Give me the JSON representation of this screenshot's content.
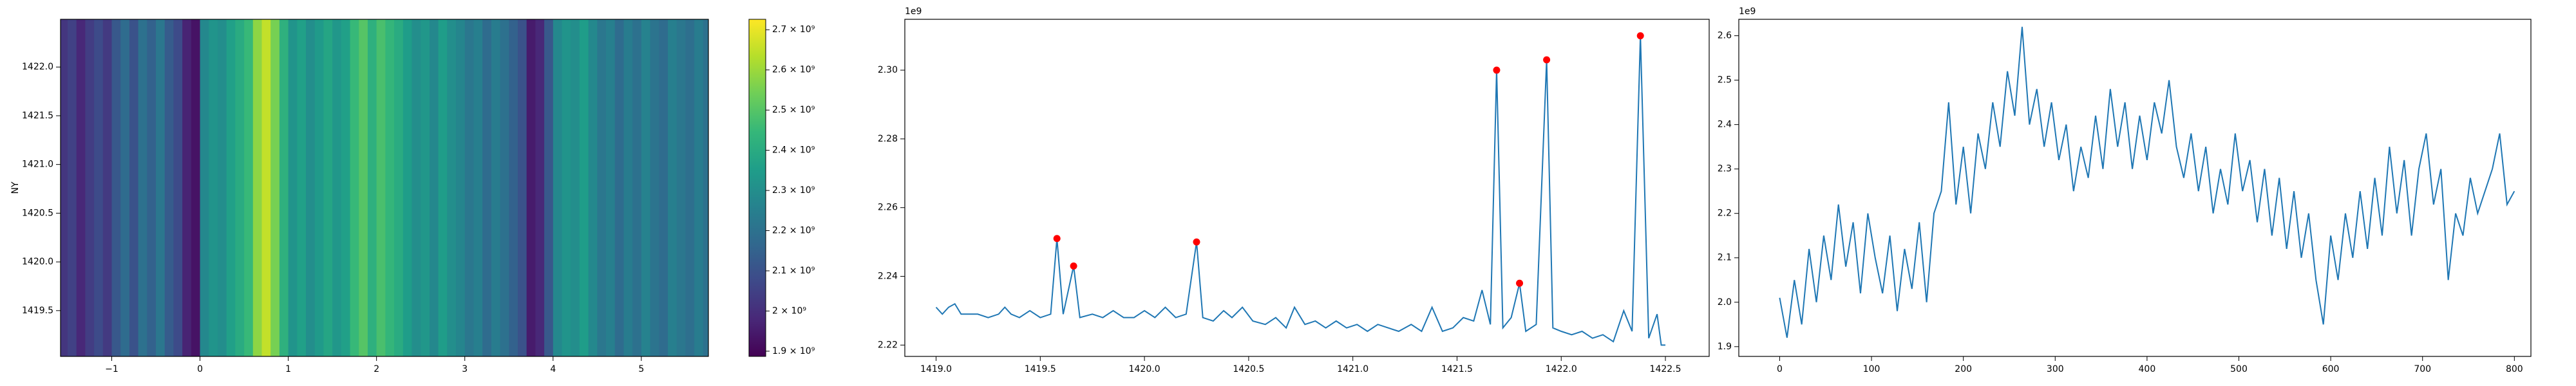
{
  "chart_data": [
    {
      "type": "heatmap",
      "y_label": "NY",
      "x_edges": [
        -1.6,
        -1.5,
        -1.4,
        -1.3,
        -1.2,
        -1.1,
        -1.0,
        -0.9,
        -0.8,
        -0.7,
        -0.6,
        -0.5,
        -0.4,
        -0.3,
        -0.2,
        -0.1,
        0.0,
        0.1,
        0.2,
        0.3,
        0.4,
        0.5,
        0.6,
        0.7,
        0.8,
        0.9,
        1.0,
        1.1,
        1.2,
        1.3,
        1.4,
        1.5,
        1.6,
        1.7,
        1.8,
        1.9,
        2.0,
        2.1,
        2.2,
        2.3,
        2.4,
        2.5,
        2.6,
        2.7,
        2.8,
        2.9,
        3.0,
        3.1,
        3.2,
        3.3,
        3.4,
        3.5,
        3.6,
        3.7,
        3.8,
        3.9,
        4.0,
        4.1,
        4.2,
        4.3,
        4.4,
        4.5,
        4.6,
        4.7,
        4.8,
        4.9,
        5.0,
        5.1,
        5.2,
        5.3,
        5.4,
        5.5,
        5.6,
        5.7,
        5.8
      ],
      "values": [
        2020000000.0,
        2050000000.0,
        1980000000.0,
        2040000000.0,
        2080000000.0,
        2030000000.0,
        2120000000.0,
        2180000000.0,
        2100000000.0,
        2200000000.0,
        2150000000.0,
        2220000000.0,
        2130000000.0,
        2080000000.0,
        1970000000.0,
        1930000000.0,
        2280000000.0,
        2320000000.0,
        2300000000.0,
        2360000000.0,
        2400000000.0,
        2450000000.0,
        2580000000.0,
        2650000000.0,
        2550000000.0,
        2420000000.0,
        2320000000.0,
        2360000000.0,
        2300000000.0,
        2340000000.0,
        2380000000.0,
        2330000000.0,
        2360000000.0,
        2450000000.0,
        2500000000.0,
        2420000000.0,
        2480000000.0,
        2440000000.0,
        2400000000.0,
        2350000000.0,
        2300000000.0,
        2330000000.0,
        2280000000.0,
        2350000000.0,
        2300000000.0,
        2270000000.0,
        2220000000.0,
        2250000000.0,
        2180000000.0,
        2240000000.0,
        2200000000.0,
        2150000000.0,
        2100000000.0,
        1950000000.0,
        1980000000.0,
        2120000000.0,
        2280000000.0,
        2320000000.0,
        2300000000.0,
        2350000000.0,
        2280000000.0,
        2220000000.0,
        2250000000.0,
        2180000000.0,
        2240000000.0,
        2200000000.0,
        2260000000.0,
        2210000000.0,
        2180000000.0,
        2250000000.0,
        2220000000.0,
        2190000000.0,
        2240000000.0,
        2200000000.0
      ],
      "xlim": [
        -1.58,
        5.76
      ],
      "ylim": [
        1419.03,
        1422.49
      ],
      "xticks": [
        {
          "value": -1,
          "label": "−1"
        },
        0,
        1,
        2,
        3,
        4,
        5
      ],
      "yticks": [
        1419.5,
        {
          "value": 1420,
          "label": "1420.0"
        },
        1420.5,
        {
          "value": 1421,
          "label": "1421.0"
        },
        1421.5,
        {
          "value": 1422,
          "label": "1422.0"
        }
      ],
      "clim": [
        1887000000.0,
        2726000000.0
      ],
      "cticks": [
        {
          "value": 1900000000.0,
          "label": "1.9 × 10⁹"
        },
        {
          "value": 2000000000.0,
          "label": "2 × 10⁹"
        },
        {
          "value": 2100000000.0,
          "label": "2.1 × 10⁹"
        },
        {
          "value": 2200000000.0,
          "label": "2.2 × 10⁹"
        },
        {
          "value": 2300000000.0,
          "label": "2.3 × 10⁹"
        },
        {
          "value": 2400000000.0,
          "label": "2.4 × 10⁹"
        },
        {
          "value": 2500000000.0,
          "label": "2.5 × 10⁹"
        },
        {
          "value": 2600000000.0,
          "label": "2.6 × 10⁹"
        },
        {
          "value": 2700000000.0,
          "label": "2.7 × 10⁹"
        }
      ],
      "colormap": "viridis"
    },
    {
      "type": "line",
      "offset_label": "1e9",
      "color": "#1f77b4",
      "x": [
        1419.0,
        1419.03,
        1419.06,
        1419.09,
        1419.12,
        1419.16,
        1419.2,
        1419.25,
        1419.3,
        1419.33,
        1419.36,
        1419.4,
        1419.45,
        1419.5,
        1419.55,
        1419.58,
        1419.61,
        1419.66,
        1419.69,
        1419.75,
        1419.8,
        1419.85,
        1419.9,
        1419.95,
        1420.0,
        1420.05,
        1420.1,
        1420.15,
        1420.2,
        1420.25,
        1420.28,
        1420.33,
        1420.38,
        1420.42,
        1420.47,
        1420.52,
        1420.58,
        1420.63,
        1420.68,
        1420.72,
        1420.77,
        1420.82,
        1420.87,
        1420.92,
        1420.97,
        1421.02,
        1421.07,
        1421.12,
        1421.17,
        1421.22,
        1421.28,
        1421.33,
        1421.38,
        1421.43,
        1421.48,
        1421.53,
        1421.58,
        1421.62,
        1421.66,
        1421.69,
        1421.72,
        1421.76,
        1421.8,
        1421.83,
        1421.88,
        1421.93,
        1421.96,
        1422.0,
        1422.05,
        1422.1,
        1422.15,
        1422.2,
        1422.25,
        1422.3,
        1422.34,
        1422.38,
        1422.42,
        1422.46,
        1422.48,
        1422.5
      ],
      "values": [
        2.231,
        2.229,
        2.231,
        2.232,
        2.229,
        2.229,
        2.229,
        2.228,
        2.229,
        2.231,
        2.229,
        2.228,
        2.23,
        2.228,
        2.229,
        2.251,
        2.229,
        2.243,
        2.228,
        2.229,
        2.228,
        2.23,
        2.228,
        2.228,
        2.23,
        2.228,
        2.231,
        2.228,
        2.229,
        2.25,
        2.228,
        2.227,
        2.23,
        2.228,
        2.231,
        2.227,
        2.226,
        2.228,
        2.225,
        2.231,
        2.226,
        2.227,
        2.225,
        2.227,
        2.225,
        2.226,
        2.224,
        2.226,
        2.225,
        2.224,
        2.226,
        2.224,
        2.231,
        2.224,
        2.225,
        2.228,
        2.227,
        2.236,
        2.226,
        2.3,
        2.225,
        2.228,
        2.238,
        2.224,
        2.226,
        2.303,
        2.225,
        2.224,
        2.223,
        2.224,
        2.222,
        2.223,
        2.221,
        2.23,
        2.224,
        2.31,
        2.222,
        2.229,
        2.22,
        2.22
      ],
      "markers": {
        "color": "#ff0000",
        "x": [
          1419.58,
          1419.66,
          1420.25,
          1421.69,
          1421.8,
          1421.93,
          1422.38
        ],
        "values": [
          2.251,
          2.243,
          2.25,
          2.3,
          2.238,
          2.303,
          2.31
        ]
      },
      "xlim": [
        1418.85,
        1422.71
      ],
      "ylim": [
        2.2167,
        2.3148
      ],
      "xticks": [
        {
          "value": 1419,
          "label": "1419.0"
        },
        1419.5,
        {
          "value": 1420,
          "label": "1420.0"
        },
        1420.5,
        {
          "value": 1421,
          "label": "1421.0"
        },
        1421.5,
        {
          "value": 1422,
          "label": "1422.0"
        },
        1422.5
      ],
      "yticks": [
        2.22,
        2.24,
        2.26,
        2.28,
        {
          "value": 2.3,
          "label": "2.30"
        }
      ]
    },
    {
      "type": "line",
      "offset_label": "1e9",
      "color": "#1f77b4",
      "x": [
        0,
        8,
        16,
        24,
        32,
        40,
        48,
        56,
        64,
        72,
        80,
        88,
        96,
        104,
        112,
        120,
        128,
        136,
        144,
        152,
        160,
        168,
        176,
        184,
        192,
        200,
        208,
        216,
        224,
        232,
        240,
        248,
        256,
        264,
        272,
        280,
        288,
        296,
        304,
        312,
        320,
        328,
        336,
        344,
        352,
        360,
        368,
        376,
        384,
        392,
        400,
        408,
        416,
        424,
        432,
        440,
        448,
        456,
        464,
        472,
        480,
        488,
        496,
        504,
        512,
        520,
        528,
        536,
        544,
        552,
        560,
        568,
        576,
        584,
        592,
        600,
        608,
        616,
        624,
        632,
        640,
        648,
        656,
        664,
        672,
        680,
        688,
        696,
        704,
        712,
        720,
        728,
        736,
        744,
        752,
        760,
        768,
        776,
        784,
        792,
        800
      ],
      "values": [
        2.01,
        1.92,
        2.05,
        1.95,
        2.12,
        2.0,
        2.15,
        2.05,
        2.22,
        2.08,
        2.18,
        2.02,
        2.2,
        2.1,
        2.02,
        2.15,
        1.98,
        2.12,
        2.03,
        2.18,
        2.0,
        2.2,
        2.25,
        2.45,
        2.22,
        2.35,
        2.2,
        2.38,
        2.3,
        2.45,
        2.35,
        2.52,
        2.42,
        2.62,
        2.4,
        2.48,
        2.35,
        2.45,
        2.32,
        2.4,
        2.25,
        2.35,
        2.28,
        2.42,
        2.3,
        2.48,
        2.35,
        2.45,
        2.3,
        2.42,
        2.32,
        2.45,
        2.38,
        2.5,
        2.35,
        2.28,
        2.38,
        2.25,
        2.35,
        2.2,
        2.3,
        2.22,
        2.38,
        2.25,
        2.32,
        2.18,
        2.3,
        2.15,
        2.28,
        2.12,
        2.25,
        2.1,
        2.2,
        2.05,
        1.95,
        2.15,
        2.05,
        2.2,
        2.1,
        2.25,
        2.12,
        2.28,
        2.15,
        2.35,
        2.2,
        2.32,
        2.15,
        2.3,
        2.38,
        2.22,
        2.3,
        2.05,
        2.2,
        2.15,
        2.28,
        2.2,
        2.25,
        2.3,
        2.38,
        2.22,
        2.25
      ],
      "xlim": [
        -44.5,
        818
      ],
      "ylim": [
        1.878,
        2.637
      ],
      "xticks": [
        0,
        100,
        200,
        300,
        400,
        500,
        600,
        700,
        800
      ],
      "yticks": [
        1.9,
        {
          "value": 2,
          "label": "2.0"
        },
        2.1,
        2.2,
        2.3,
        2.4,
        2.5,
        2.6
      ]
    }
  ]
}
